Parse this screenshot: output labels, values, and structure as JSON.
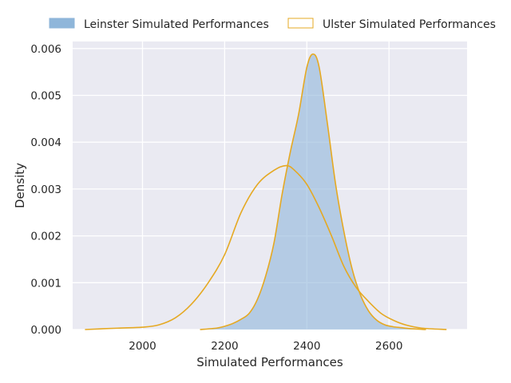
{
  "chart_data": {
    "type": "area",
    "title": "",
    "xlabel": "Simulated Performances",
    "ylabel": "Density",
    "xlim": [
      1830,
      2790
    ],
    "ylim": [
      0,
      0.00615
    ],
    "xticks": [
      2000,
      2200,
      2400,
      2600
    ],
    "yticks": [
      0,
      0.001,
      0.002,
      0.003,
      0.004,
      0.005,
      0.006
    ],
    "ytick_labels": [
      "0.000",
      "0.001",
      "0.002",
      "0.003",
      "0.004",
      "0.005",
      "0.006"
    ],
    "grid": true,
    "legend_position": "top-center-outside",
    "series": [
      {
        "name": "Leinster Simulated Performances",
        "fill": "#8fb6da",
        "stroke": "#e5a923",
        "filled": true,
        "points": [
          [
            2140,
            0
          ],
          [
            2180,
            3e-05
          ],
          [
            2200,
            7e-05
          ],
          [
            2220,
            0.00013
          ],
          [
            2240,
            0.00022
          ],
          [
            2260,
            0.00035
          ],
          [
            2280,
            0.00065
          ],
          [
            2300,
            0.00115
          ],
          [
            2320,
            0.00185
          ],
          [
            2340,
            0.0029
          ],
          [
            2360,
            0.0038
          ],
          [
            2380,
            0.0046
          ],
          [
            2400,
            0.0056
          ],
          [
            2415,
            0.00588
          ],
          [
            2430,
            0.0056
          ],
          [
            2450,
            0.0044
          ],
          [
            2470,
            0.0031
          ],
          [
            2490,
            0.0021
          ],
          [
            2510,
            0.0013
          ],
          [
            2530,
            0.00075
          ],
          [
            2550,
            0.0004
          ],
          [
            2570,
            0.0002
          ],
          [
            2590,
            0.0001
          ],
          [
            2610,
            6e-05
          ],
          [
            2630,
            4e-05
          ],
          [
            2650,
            2e-05
          ],
          [
            2690,
            0
          ]
        ]
      },
      {
        "name": "Ulster Simulated Performances",
        "fill": "#ffffff",
        "stroke": "#e5a923",
        "filled": false,
        "points": [
          [
            1860,
            0
          ],
          [
            1940,
            3e-05
          ],
          [
            2000,
            5e-05
          ],
          [
            2040,
            0.0001
          ],
          [
            2080,
            0.00025
          ],
          [
            2120,
            0.00055
          ],
          [
            2160,
            0.001
          ],
          [
            2200,
            0.0016
          ],
          [
            2240,
            0.0025
          ],
          [
            2280,
            0.0031
          ],
          [
            2320,
            0.0034
          ],
          [
            2350,
            0.0035
          ],
          [
            2370,
            0.0034
          ],
          [
            2400,
            0.0031
          ],
          [
            2430,
            0.0026
          ],
          [
            2460,
            0.002
          ],
          [
            2490,
            0.00135
          ],
          [
            2520,
            0.0009
          ],
          [
            2550,
            0.0006
          ],
          [
            2580,
            0.00035
          ],
          [
            2610,
            0.0002
          ],
          [
            2640,
            0.0001
          ],
          [
            2680,
            3e-05
          ],
          [
            2740,
            0
          ]
        ]
      }
    ]
  }
}
